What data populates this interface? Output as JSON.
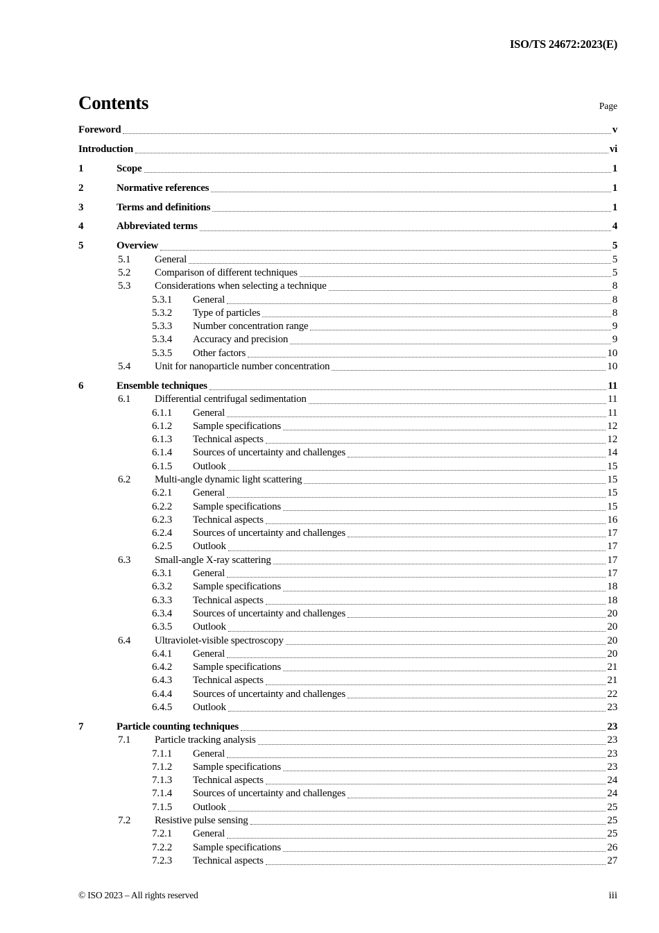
{
  "header": {
    "doc_ref": "ISO/TS 24672:2023(E)"
  },
  "heading": {
    "title": "Contents",
    "page_label": "Page"
  },
  "toc": {
    "entries": [
      {
        "level": 0,
        "num": "",
        "title": "Foreword",
        "page": "v"
      },
      {
        "level": 0,
        "num": "",
        "title": "Introduction",
        "page": "vi"
      },
      {
        "level": 1,
        "num": "1",
        "title": "Scope",
        "page": "1"
      },
      {
        "level": 1,
        "num": "2",
        "title": "Normative references",
        "page": "1"
      },
      {
        "level": 1,
        "num": "3",
        "title": "Terms and definitions",
        "page": "1"
      },
      {
        "level": 1,
        "num": "4",
        "title": "Abbreviated terms",
        "page": "4"
      },
      {
        "level": 1,
        "num": "5",
        "title": "Overview",
        "page": "5"
      },
      {
        "level": 2,
        "num": "5.1",
        "title": "General",
        "page": "5"
      },
      {
        "level": 2,
        "num": "5.2",
        "title": "Comparison of different techniques",
        "page": "5"
      },
      {
        "level": 2,
        "num": "5.3",
        "title": "Considerations when selecting a technique",
        "page": "8"
      },
      {
        "level": 3,
        "num": "5.3.1",
        "title": "General",
        "page": "8"
      },
      {
        "level": 3,
        "num": "5.3.2",
        "title": "Type of particles",
        "page": "8"
      },
      {
        "level": 3,
        "num": "5.3.3",
        "title": "Number concentration range",
        "page": "9"
      },
      {
        "level": 3,
        "num": "5.3.4",
        "title": "Accuracy and precision",
        "page": "9"
      },
      {
        "level": 3,
        "num": "5.3.5",
        "title": "Other factors",
        "page": "10"
      },
      {
        "level": 2,
        "num": "5.4",
        "title": "Unit for nanoparticle number concentration",
        "page": "10"
      },
      {
        "level": 1,
        "num": "6",
        "title": "Ensemble techniques",
        "page": "11"
      },
      {
        "level": 2,
        "num": "6.1",
        "title": "Differential centrifugal sedimentation",
        "page": "11"
      },
      {
        "level": 3,
        "num": "6.1.1",
        "title": "General",
        "page": "11"
      },
      {
        "level": 3,
        "num": "6.1.2",
        "title": "Sample specifications",
        "page": "12"
      },
      {
        "level": 3,
        "num": "6.1.3",
        "title": "Technical aspects",
        "page": "12"
      },
      {
        "level": 3,
        "num": "6.1.4",
        "title": "Sources of uncertainty and challenges",
        "page": "14"
      },
      {
        "level": 3,
        "num": "6.1.5",
        "title": "Outlook",
        "page": "15"
      },
      {
        "level": 2,
        "num": "6.2",
        "title": "Multi-angle dynamic light scattering",
        "page": "15"
      },
      {
        "level": 3,
        "num": "6.2.1",
        "title": "General",
        "page": "15"
      },
      {
        "level": 3,
        "num": "6.2.2",
        "title": "Sample specifications",
        "page": "15"
      },
      {
        "level": 3,
        "num": "6.2.3",
        "title": "Technical aspects",
        "page": "16"
      },
      {
        "level": 3,
        "num": "6.2.4",
        "title": "Sources of uncertainty and challenges",
        "page": "17"
      },
      {
        "level": 3,
        "num": "6.2.5",
        "title": "Outlook",
        "page": "17"
      },
      {
        "level": 2,
        "num": "6.3",
        "title": "Small-angle X-ray scattering",
        "page": "17"
      },
      {
        "level": 3,
        "num": "6.3.1",
        "title": "General",
        "page": "17"
      },
      {
        "level": 3,
        "num": "6.3.2",
        "title": "Sample specifications",
        "page": "18"
      },
      {
        "level": 3,
        "num": "6.3.3",
        "title": "Technical aspects",
        "page": "18"
      },
      {
        "level": 3,
        "num": "6.3.4",
        "title": "Sources of uncertainty and challenges",
        "page": "20"
      },
      {
        "level": 3,
        "num": "6.3.5",
        "title": "Outlook",
        "page": "20"
      },
      {
        "level": 2,
        "num": "6.4",
        "title": "Ultraviolet-visible spectroscopy",
        "page": "20"
      },
      {
        "level": 3,
        "num": "6.4.1",
        "title": "General",
        "page": "20"
      },
      {
        "level": 3,
        "num": "6.4.2",
        "title": "Sample specifications",
        "page": "21"
      },
      {
        "level": 3,
        "num": "6.4.3",
        "title": "Technical aspects",
        "page": "21"
      },
      {
        "level": 3,
        "num": "6.4.4",
        "title": "Sources of uncertainty and challenges",
        "page": "22"
      },
      {
        "level": 3,
        "num": "6.4.5",
        "title": "Outlook",
        "page": "23"
      },
      {
        "level": 1,
        "num": "7",
        "title": "Particle counting techniques",
        "page": "23"
      },
      {
        "level": 2,
        "num": "7.1",
        "title": "Particle tracking analysis",
        "page": "23"
      },
      {
        "level": 3,
        "num": "7.1.1",
        "title": "General",
        "page": "23"
      },
      {
        "level": 3,
        "num": "7.1.2",
        "title": "Sample specifications",
        "page": "23"
      },
      {
        "level": 3,
        "num": "7.1.3",
        "title": "Technical aspects",
        "page": "24"
      },
      {
        "level": 3,
        "num": "7.1.4",
        "title": "Sources of uncertainty and challenges",
        "page": "24"
      },
      {
        "level": 3,
        "num": "7.1.5",
        "title": "Outlook",
        "page": "25"
      },
      {
        "level": 2,
        "num": "7.2",
        "title": "Resistive pulse sensing",
        "page": "25"
      },
      {
        "level": 3,
        "num": "7.2.1",
        "title": "General",
        "page": "25"
      },
      {
        "level": 3,
        "num": "7.2.2",
        "title": "Sample specifications",
        "page": "26"
      },
      {
        "level": 3,
        "num": "7.2.3",
        "title": "Technical aspects",
        "page": "27"
      }
    ]
  },
  "footer": {
    "copyright": "© ISO 2023 – All rights reserved",
    "page_number": "iii"
  }
}
